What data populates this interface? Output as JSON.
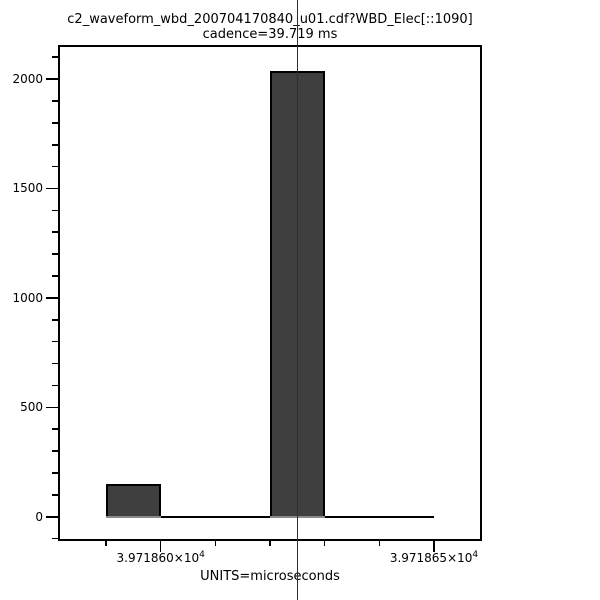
{
  "page": {
    "background": "#ffffff"
  },
  "chart_data": {
    "type": "bar",
    "title": "c2_waveform_wbd_200704170840_u01.cdf?WBD_Elec[::1090]",
    "subtitle": "cadence=39.719 ms",
    "xlabel": "UNITS=microseconds",
    "x_unit": "microseconds",
    "grid": false,
    "legend_position": "none",
    "xlim": [
      39718.5814,
      39718.6586
    ],
    "ylim": [
      -106,
      2151
    ],
    "bins": [
      {
        "x0": 39718.59,
        "x1": 39718.6,
        "count": 150
      },
      {
        "x0": 39718.6,
        "x1": 39718.61,
        "count": 0
      },
      {
        "x0": 39718.61,
        "x1": 39718.62,
        "count": 0
      },
      {
        "x0": 39718.62,
        "x1": 39718.63,
        "count": 2038
      },
      {
        "x0": 39718.63,
        "x1": 39718.64,
        "count": 0
      },
      {
        "x0": 39718.64,
        "x1": 39718.65,
        "count": 0
      }
    ],
    "marker_line_x": 39718.625,
    "xticks_major": [
      {
        "value": 39718.6,
        "mantissa": "3.971860",
        "times_base": "×10",
        "exponent": "4"
      },
      {
        "value": 39718.65,
        "mantissa": "3.971865",
        "times_base": "×10",
        "exponent": "4"
      }
    ],
    "xticks_minor": [
      39718.59,
      39718.61,
      39718.62,
      39718.63,
      39718.64
    ],
    "yticks_major": [
      {
        "value": 0,
        "label": "0"
      },
      {
        "value": 500,
        "label": "500"
      },
      {
        "value": 1000,
        "label": "1000"
      },
      {
        "value": 1500,
        "label": "1500"
      },
      {
        "value": 2000,
        "label": "2000"
      }
    ],
    "yticks_minor_step": 100,
    "yticks_minor_range": [
      -100,
      2100
    ],
    "colors": {
      "bar_fill": "#3f3f3f",
      "bar_outline": "#000000",
      "axis": "#000000",
      "marker_line": "#2e2e2e",
      "bar_baseline": "#8a8a8a",
      "text": "#000000",
      "background": "#ffffff"
    }
  }
}
